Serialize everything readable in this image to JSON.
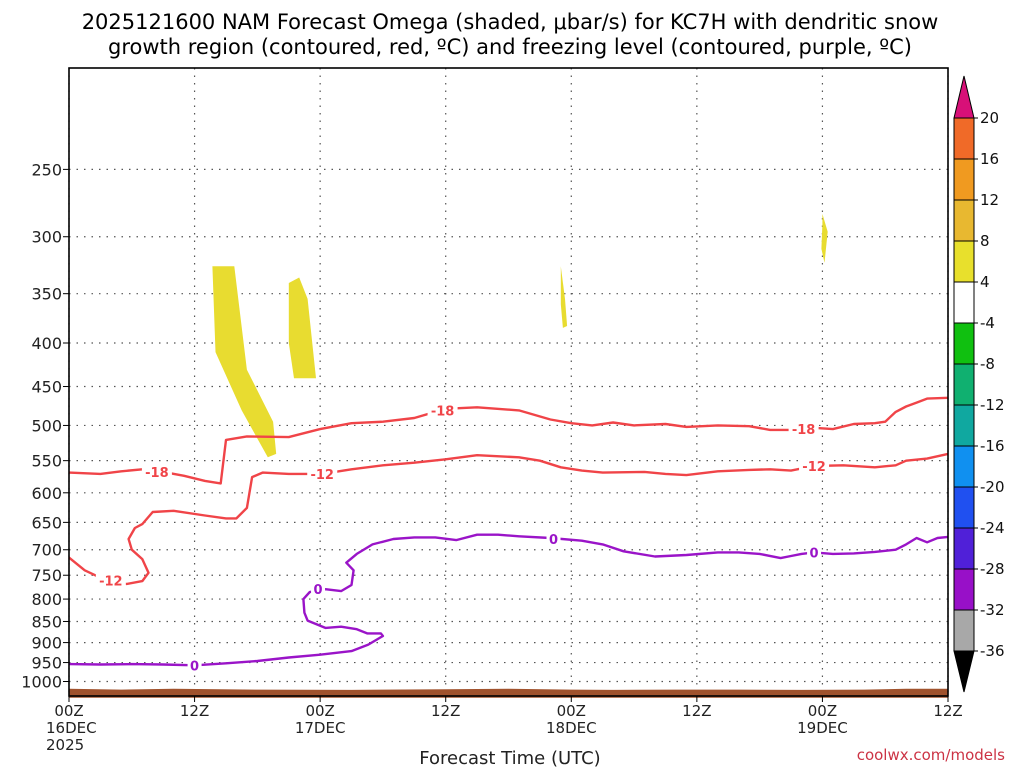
{
  "title_line1": "2025121600 NAM Forecast Omega (shaded, μbar/s) for KC7H with dendritic snow",
  "title_line2": "growth region (contoured, red, ºC) and freezing level (contoured, purple, ºC)",
  "credit": "coolwx.com/models",
  "chart_data": {
    "type": "time-height",
    "xlabel": "Forecast Time (UTC)",
    "x_range_hours": [
      0,
      84
    ],
    "x_ticks": [
      {
        "hour": 0,
        "line1": "00Z",
        "line2": "16DEC",
        "line3": "2025"
      },
      {
        "hour": 12,
        "line1": "12Z",
        "line2": "",
        "line3": ""
      },
      {
        "hour": 24,
        "line1": "00Z",
        "line2": "17DEC",
        "line3": ""
      },
      {
        "hour": 36,
        "line1": "12Z",
        "line2": "",
        "line3": ""
      },
      {
        "hour": 48,
        "line1": "00Z",
        "line2": "18DEC",
        "line3": ""
      },
      {
        "hour": 60,
        "line1": "12Z",
        "line2": "",
        "line3": ""
      },
      {
        "hour": 72,
        "line1": "00Z",
        "line2": "19DEC",
        "line3": ""
      },
      {
        "hour": 84,
        "line1": "12Z",
        "line2": "",
        "line3": ""
      }
    ],
    "y_scale": "log-pressure",
    "y_range_hpa": [
      1040,
      190
    ],
    "y_ticks": [
      250,
      300,
      350,
      400,
      450,
      500,
      550,
      600,
      650,
      700,
      750,
      800,
      850,
      900,
      950,
      1000
    ],
    "grid": true,
    "colorbar": {
      "labels": [
        "20",
        "16",
        "12",
        "8",
        "4",
        "-4",
        "-8",
        "-12",
        "-16",
        "-20",
        "-24",
        "-28",
        "-32",
        "-36"
      ],
      "colors": [
        "#f03c50",
        "#f06a28",
        "#f09a20",
        "#e8b830",
        "#e8e02c",
        "#ffffff",
        "#10c010",
        "#10b070",
        "#10a8a0",
        "#1090f0",
        "#2050f0",
        "#5020d8",
        "#9810c8",
        "#a8a8a8"
      ],
      "top_arrow_color": "#d81078",
      "bottom_arrow_color": "#000000"
    },
    "omega_areas": [
      {
        "color": "#e8dc30",
        "points": [
          [
            13.7,
            325
          ],
          [
            15.8,
            325
          ],
          [
            17.0,
            430
          ],
          [
            19.5,
            495
          ],
          [
            19.8,
            540
          ],
          [
            19.0,
            545
          ],
          [
            16.5,
            480
          ],
          [
            14.0,
            410
          ]
        ]
      },
      {
        "color": "#e8dc30",
        "points": [
          [
            16.6,
            438
          ],
          [
            17.1,
            438
          ],
          [
            18.0,
            470
          ],
          [
            19.6,
            530
          ],
          [
            19.0,
            540
          ],
          [
            17.8,
            500
          ],
          [
            16.8,
            470
          ]
        ]
      },
      {
        "color": "#e8dc30",
        "points": [
          [
            21.0,
            340
          ],
          [
            22.0,
            335
          ],
          [
            22.8,
            355
          ],
          [
            23.6,
            440
          ],
          [
            21.5,
            440
          ],
          [
            21.0,
            400
          ]
        ]
      },
      {
        "color": "#e8dc30",
        "points": [
          [
            47.0,
            325
          ],
          [
            47.4,
            355
          ],
          [
            47.6,
            382
          ],
          [
            47.2,
            384
          ],
          [
            47.0,
            360
          ]
        ]
      },
      {
        "color": "#e8dc30",
        "points": [
          [
            72.0,
            282
          ],
          [
            72.5,
            296
          ],
          [
            72.2,
            322
          ],
          [
            71.9,
            310
          ],
          [
            72.0,
            290
          ]
        ]
      }
    ],
    "contours": [
      {
        "name": "-18",
        "color": "#f04448",
        "labels": [
          {
            "hour": 8.4,
            "hpa": 567
          },
          {
            "hour": 35.7,
            "hpa": 480
          },
          {
            "hour": 70.2,
            "hpa": 505
          }
        ],
        "points": [
          [
            0,
            568
          ],
          [
            3,
            570
          ],
          [
            5,
            566
          ],
          [
            7,
            563
          ],
          [
            9,
            567
          ],
          [
            11,
            573
          ],
          [
            13,
            581
          ],
          [
            14.5,
            585
          ],
          [
            15.0,
            520
          ],
          [
            17,
            515
          ],
          [
            21,
            516
          ],
          [
            24,
            505
          ],
          [
            27,
            497
          ],
          [
            30,
            495
          ],
          [
            33,
            490
          ],
          [
            36,
            478
          ],
          [
            39,
            476
          ],
          [
            43,
            480
          ],
          [
            46,
            492
          ],
          [
            48,
            497
          ],
          [
            50,
            500
          ],
          [
            52,
            496
          ],
          [
            54,
            500
          ],
          [
            57,
            498
          ],
          [
            59,
            502
          ],
          [
            62,
            500
          ],
          [
            65,
            501
          ],
          [
            67,
            506
          ],
          [
            69,
            506
          ],
          [
            70.2,
            505
          ],
          [
            71,
            503
          ],
          [
            73,
            505
          ],
          [
            75,
            498
          ],
          [
            77,
            497
          ],
          [
            78,
            495
          ],
          [
            79,
            482
          ],
          [
            80,
            475
          ],
          [
            81,
            470
          ],
          [
            82,
            465
          ],
          [
            84,
            464
          ]
        ]
      },
      {
        "name": "-12",
        "color": "#f04448",
        "labels": [
          {
            "hour": 4.0,
            "hpa": 761
          },
          {
            "hour": 24.2,
            "hpa": 570
          },
          {
            "hour": 71.2,
            "hpa": 558
          }
        ],
        "points": [
          [
            0,
            715
          ],
          [
            1.5,
            740
          ],
          [
            3,
            755
          ],
          [
            4,
            761
          ],
          [
            5.5,
            768
          ],
          [
            7,
            762
          ],
          [
            7.6,
            745
          ],
          [
            7.0,
            718
          ],
          [
            6.0,
            700
          ],
          [
            5.7,
            680
          ],
          [
            6.3,
            660
          ],
          [
            7.0,
            653
          ],
          [
            8.0,
            632
          ],
          [
            10,
            630
          ],
          [
            13,
            638
          ],
          [
            15,
            643
          ],
          [
            16,
            643
          ],
          [
            17.0,
            625
          ],
          [
            17.5,
            575
          ],
          [
            18.5,
            568
          ],
          [
            21,
            570
          ],
          [
            24.2,
            570
          ],
          [
            27,
            563
          ],
          [
            30,
            557
          ],
          [
            33,
            553
          ],
          [
            36,
            548
          ],
          [
            39,
            542
          ],
          [
            43,
            545
          ],
          [
            45,
            550
          ],
          [
            47,
            560
          ],
          [
            49,
            565
          ],
          [
            51,
            568
          ],
          [
            55,
            567
          ],
          [
            57,
            570
          ],
          [
            59,
            572
          ],
          [
            62,
            566
          ],
          [
            65,
            564
          ],
          [
            67,
            563
          ],
          [
            69,
            565
          ],
          [
            71.2,
            558
          ],
          [
            74,
            557
          ],
          [
            77,
            560
          ],
          [
            79,
            557
          ],
          [
            80,
            550
          ],
          [
            82,
            547
          ],
          [
            84,
            540
          ]
        ]
      },
      {
        "name": "0",
        "color": "#9a14c8",
        "labels": [
          {
            "hour": 12.0,
            "hpa": 957
          },
          {
            "hour": 23.8,
            "hpa": 779
          },
          {
            "hour": 46.3,
            "hpa": 680
          },
          {
            "hour": 71.2,
            "hpa": 705
          }
        ],
        "points": [
          [
            0,
            954
          ],
          [
            3,
            955
          ],
          [
            6,
            954
          ],
          [
            9,
            955
          ],
          [
            12,
            957
          ],
          [
            15,
            952
          ],
          [
            18,
            946
          ],
          [
            21,
            937
          ],
          [
            24,
            930
          ],
          [
            27,
            921
          ],
          [
            28.6,
            905
          ],
          [
            30,
            884
          ],
          [
            29.8,
            878
          ],
          [
            28.5,
            878
          ],
          [
            27.5,
            868
          ],
          [
            26,
            862
          ],
          [
            24.5,
            865
          ],
          [
            22.8,
            848
          ],
          [
            22.5,
            830
          ],
          [
            22.4,
            800
          ],
          [
            23,
            785
          ],
          [
            24.5,
            779
          ],
          [
            26,
            783
          ],
          [
            27.0,
            770
          ],
          [
            27.2,
            740
          ],
          [
            26.5,
            725
          ],
          [
            27.5,
            708
          ],
          [
            29,
            690
          ],
          [
            31,
            680
          ],
          [
            33,
            677
          ],
          [
            35,
            677
          ],
          [
            37,
            682
          ],
          [
            39,
            672
          ],
          [
            41,
            672
          ],
          [
            43,
            675
          ],
          [
            46,
            678
          ],
          [
            49,
            683
          ],
          [
            51,
            690
          ],
          [
            53,
            703
          ],
          [
            56,
            713
          ],
          [
            59,
            710
          ],
          [
            62,
            705
          ],
          [
            64,
            705
          ],
          [
            66,
            708
          ],
          [
            68,
            716
          ],
          [
            69,
            712
          ],
          [
            70,
            708
          ],
          [
            71.2,
            705
          ],
          [
            73,
            708
          ],
          [
            75,
            707
          ],
          [
            77,
            704
          ],
          [
            79,
            700
          ],
          [
            80,
            690
          ],
          [
            81,
            678
          ],
          [
            82,
            686
          ],
          [
            83,
            678
          ],
          [
            84,
            676
          ]
        ]
      }
    ],
    "terrain": {
      "color": "#a0522d",
      "points": [
        [
          0,
          1020
        ],
        [
          5,
          1022
        ],
        [
          10,
          1020
        ],
        [
          18,
          1022
        ],
        [
          27,
          1023
        ],
        [
          30,
          1022
        ],
        [
          36,
          1021
        ],
        [
          42,
          1020
        ],
        [
          48,
          1022
        ],
        [
          52,
          1023
        ],
        [
          58,
          1022
        ],
        [
          64,
          1022
        ],
        [
          70,
          1023
        ],
        [
          76,
          1022
        ],
        [
          80,
          1020
        ],
        [
          84,
          1020
        ]
      ]
    }
  }
}
